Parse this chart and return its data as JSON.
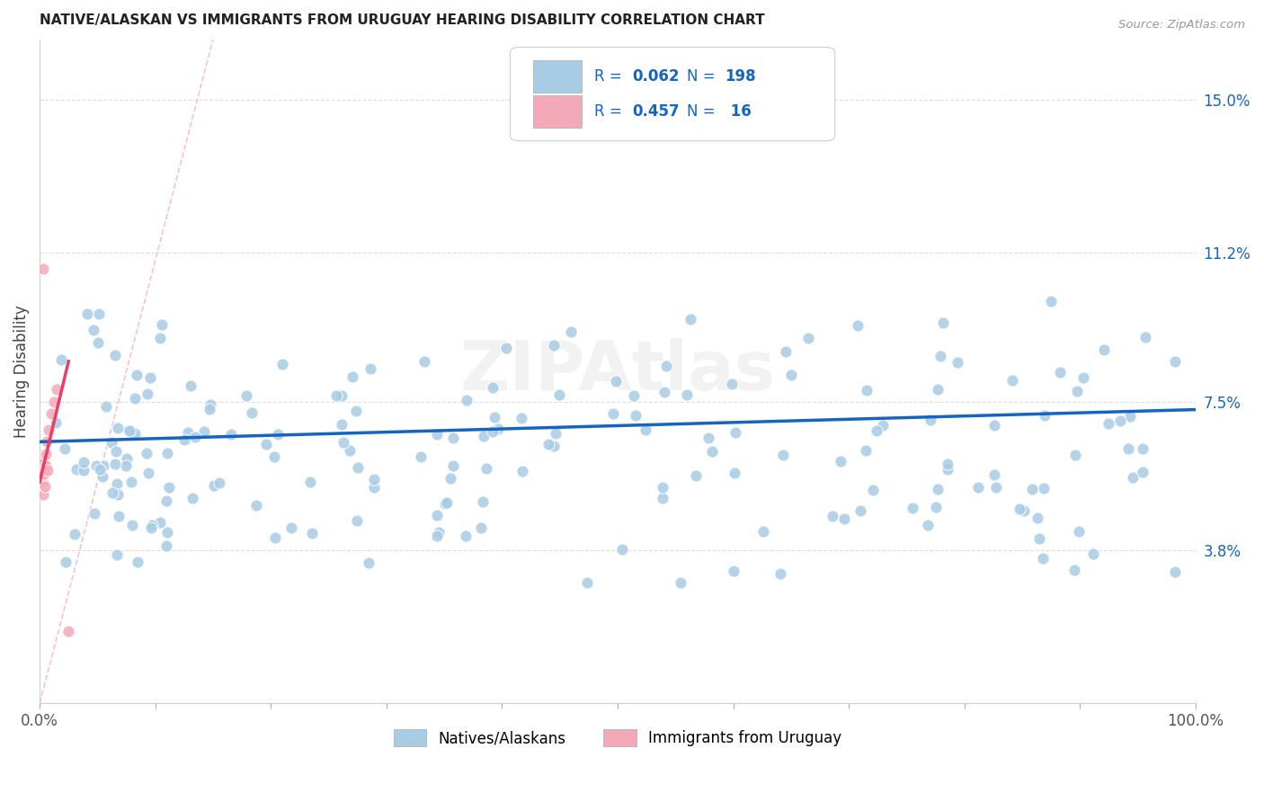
{
  "title": "NATIVE/ALASKAN VS IMMIGRANTS FROM URUGUAY HEARING DISABILITY CORRELATION CHART",
  "source": "Source: ZipAtlas.com",
  "ylabel": "Hearing Disability",
  "xlim": [
    0,
    100
  ],
  "ylim": [
    0,
    16.5
  ],
  "yticks": [
    3.8,
    7.5,
    11.2,
    15.0
  ],
  "xtick_positions": [
    0,
    10,
    20,
    30,
    40,
    50,
    60,
    70,
    80,
    90,
    100
  ],
  "xtick_labels": [
    "0.0%",
    "",
    "",
    "",
    "",
    "",
    "",
    "",
    "",
    "",
    "100.0%"
  ],
  "blue_R": 0.062,
  "blue_N": 198,
  "pink_R": 0.457,
  "pink_N": 16,
  "blue_color": "#a8cce4",
  "pink_color": "#f4a9b8",
  "blue_line_color": "#1565c0",
  "pink_line_color": "#e83e6c",
  "ref_line_color": "#f4a9b8",
  "legend_label_color": "#1565c0",
  "legend_blue_label": "Natives/Alaskans",
  "legend_pink_label": "Immigrants from Uruguay",
  "watermark": "ZIPAtlas",
  "title_fontsize": 11,
  "axis_fontsize": 12,
  "legend_fontsize": 12
}
